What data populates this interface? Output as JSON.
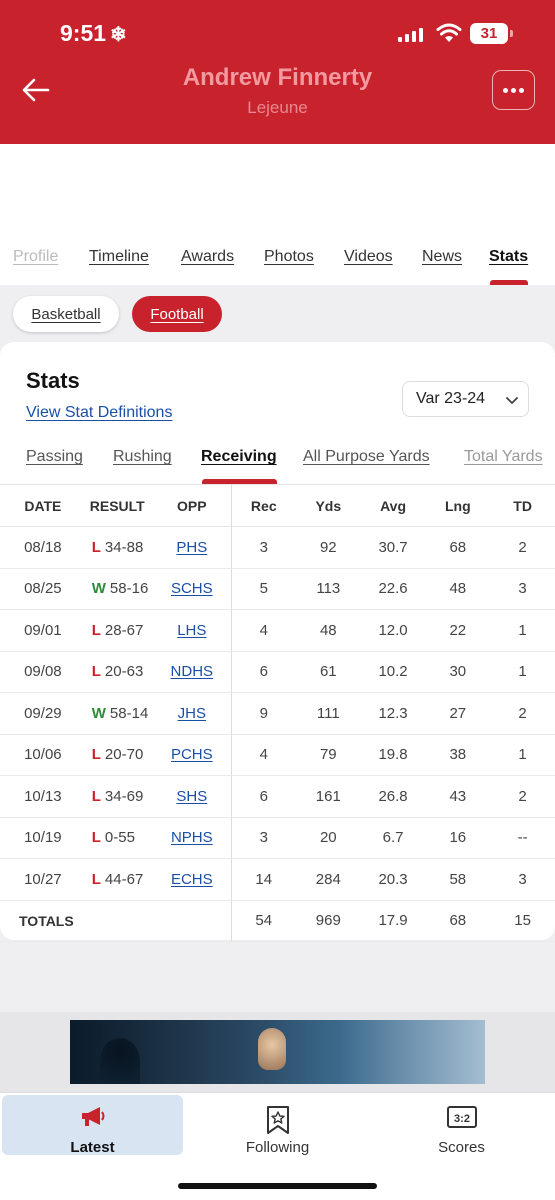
{
  "status_bar": {
    "time": "9:51",
    "battery": "31"
  },
  "header": {
    "title": "Andrew Finnerty",
    "subtitle": "Lejeune"
  },
  "tabs": [
    {
      "label": "Profile"
    },
    {
      "label": "Timeline"
    },
    {
      "label": "Awards"
    },
    {
      "label": "Photos"
    },
    {
      "label": "Videos"
    },
    {
      "label": "News"
    },
    {
      "label": "Stats"
    }
  ],
  "sports": {
    "basketball": "Basketball",
    "football": "Football"
  },
  "stats": {
    "heading": "Stats",
    "definitions_link": "View Stat Definitions",
    "season": "Var 23-24",
    "subtabs": [
      {
        "label": "Passing"
      },
      {
        "label": "Rushing"
      },
      {
        "label": "Receiving"
      },
      {
        "label": "All Purpose Yards"
      },
      {
        "label": "Total Yards"
      }
    ],
    "columns": [
      "DATE",
      "RESULT",
      "OPP",
      "Rec",
      "Yds",
      "Avg",
      "Lng",
      "TD"
    ],
    "rows": [
      {
        "date": "08/18",
        "wl": "L",
        "score": "34-88",
        "opp": "PHS",
        "rec": "3",
        "yds": "92",
        "avg": "30.7",
        "lng": "68",
        "td": "2"
      },
      {
        "date": "08/25",
        "wl": "W",
        "score": "58-16",
        "opp": "SCHS",
        "rec": "5",
        "yds": "113",
        "avg": "22.6",
        "lng": "48",
        "td": "3"
      },
      {
        "date": "09/01",
        "wl": "L",
        "score": "28-67",
        "opp": "LHS",
        "rec": "4",
        "yds": "48",
        "avg": "12.0",
        "lng": "22",
        "td": "1"
      },
      {
        "date": "09/08",
        "wl": "L",
        "score": "20-63",
        "opp": "NDHS",
        "rec": "6",
        "yds": "61",
        "avg": "10.2",
        "lng": "30",
        "td": "1"
      },
      {
        "date": "09/29",
        "wl": "W",
        "score": "58-14",
        "opp": "JHS",
        "rec": "9",
        "yds": "111",
        "avg": "12.3",
        "lng": "27",
        "td": "2"
      },
      {
        "date": "10/06",
        "wl": "L",
        "score": "20-70",
        "opp": "PCHS",
        "rec": "4",
        "yds": "79",
        "avg": "19.8",
        "lng": "38",
        "td": "1"
      },
      {
        "date": "10/13",
        "wl": "L",
        "score": "34-69",
        "opp": "SHS",
        "rec": "6",
        "yds": "161",
        "avg": "26.8",
        "lng": "43",
        "td": "2"
      },
      {
        "date": "10/19",
        "wl": "L",
        "score": "0-55",
        "opp": "NPHS",
        "rec": "3",
        "yds": "20",
        "avg": "6.7",
        "lng": "16",
        "td": "--"
      },
      {
        "date": "10/27",
        "wl": "L",
        "score": "44-67",
        "opp": "ECHS",
        "rec": "14",
        "yds": "284",
        "avg": "20.3",
        "lng": "58",
        "td": "3"
      }
    ],
    "totals": {
      "label": "TOTALS",
      "rec": "54",
      "yds": "969",
      "avg": "17.9",
      "lng": "68",
      "td": "15"
    }
  },
  "bottom_nav": [
    {
      "label": "Latest",
      "icon": "megaphone-icon"
    },
    {
      "label": "Following",
      "icon": "bookmark-star-icon"
    },
    {
      "label": "Scores",
      "icon": "scoreboard-icon"
    }
  ],
  "colors": {
    "brand_red": "#c8232d",
    "link_blue": "#1a4fa8",
    "win_green": "#2e8b3a",
    "active_nav_bg": "#d9e4f3"
  }
}
